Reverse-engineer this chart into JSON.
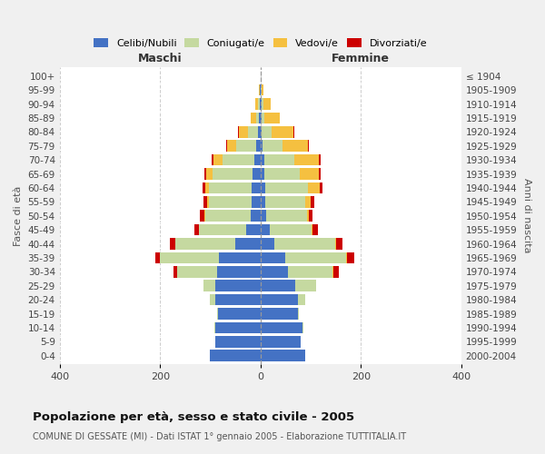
{
  "age_groups": [
    "0-4",
    "5-9",
    "10-14",
    "15-19",
    "20-24",
    "25-29",
    "30-34",
    "35-39",
    "40-44",
    "45-49",
    "50-54",
    "55-59",
    "60-64",
    "65-69",
    "70-74",
    "75-79",
    "80-84",
    "85-89",
    "90-94",
    "95-99",
    "100+"
  ],
  "birth_years": [
    "2000-2004",
    "1995-1999",
    "1990-1994",
    "1985-1989",
    "1980-1984",
    "1975-1979",
    "1970-1974",
    "1965-1969",
    "1960-1964",
    "1955-1959",
    "1950-1954",
    "1945-1949",
    "1940-1944",
    "1935-1939",
    "1930-1934",
    "1925-1929",
    "1920-1924",
    "1915-1919",
    "1910-1914",
    "1905-1909",
    "≤ 1904"
  ],
  "colors": {
    "celibi": "#4472C4",
    "coniugati": "#c5d9a0",
    "vedovi": "#f5c040",
    "divorziati": "#cc0000"
  },
  "maschi_celibi": [
    100,
    90,
    90,
    84,
    90,
    90,
    86,
    82,
    50,
    28,
    20,
    18,
    18,
    16,
    12,
    8,
    5,
    3,
    2,
    1,
    0
  ],
  "maschi_coniugati": [
    0,
    0,
    2,
    2,
    10,
    24,
    80,
    118,
    120,
    94,
    90,
    84,
    84,
    80,
    64,
    40,
    20,
    5,
    3,
    1,
    0
  ],
  "maschi_vedovi": [
    0,
    0,
    0,
    0,
    0,
    0,
    0,
    0,
    0,
    0,
    2,
    4,
    8,
    12,
    18,
    18,
    18,
    12,
    5,
    2,
    0
  ],
  "maschi_divorziati": [
    0,
    0,
    0,
    0,
    0,
    0,
    8,
    10,
    10,
    10,
    8,
    8,
    5,
    3,
    3,
    2,
    2,
    0,
    0,
    0,
    0
  ],
  "femmine_nubili": [
    90,
    80,
    84,
    74,
    74,
    70,
    54,
    50,
    28,
    18,
    12,
    10,
    10,
    8,
    8,
    4,
    2,
    3,
    2,
    1,
    0
  ],
  "femmine_coniugate": [
    0,
    0,
    2,
    2,
    16,
    40,
    90,
    120,
    120,
    84,
    80,
    80,
    84,
    70,
    60,
    40,
    20,
    5,
    3,
    1,
    0
  ],
  "femmine_vedove": [
    0,
    0,
    0,
    0,
    0,
    0,
    2,
    2,
    2,
    2,
    4,
    10,
    24,
    38,
    48,
    50,
    44,
    30,
    16,
    4,
    1
  ],
  "femmine_divorziate": [
    0,
    0,
    0,
    0,
    0,
    0,
    10,
    14,
    14,
    10,
    8,
    8,
    5,
    3,
    3,
    2,
    2,
    0,
    0,
    0,
    0
  ],
  "title": "Popolazione per età, sesso e stato civile - 2005",
  "subtitle": "COMUNE DI GESSATE (MI) - Dati ISTAT 1° gennaio 2005 - Elaborazione TUTTITALIA.IT",
  "xlabel_left": "Maschi",
  "xlabel_right": "Femmine",
  "ylabel_left": "Fasce di età",
  "ylabel_right": "Anni di nascita",
  "xlim": 400,
  "background_color": "#f0f0f0",
  "plot_bg": "#ffffff"
}
